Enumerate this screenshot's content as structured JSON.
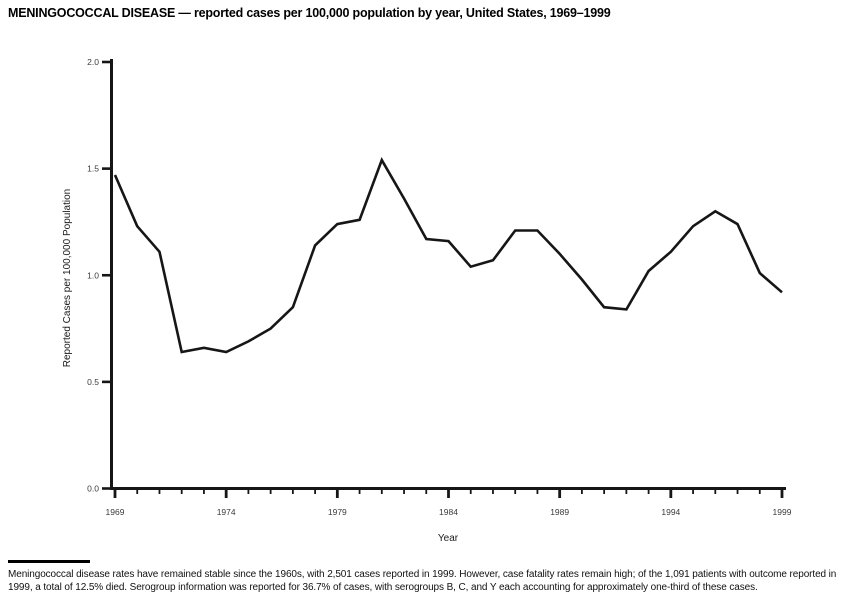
{
  "page": {
    "title": "MENINGOCOCCAL DISEASE — reported cases per 100,000 population by year, United States, 1969–1999"
  },
  "footnote": {
    "text": "Meningococcal disease rates have remained stable since the 1960s, with 2,501 cases reported in 1999. However, case fatality rates remain high; of the 1,091 patients with outcome reported in 1999, a total of 12.5% died. Serogroup information was reported for 36.7% of cases, with serogroups B, C, and Y each accounting for approximately one-third of these cases."
  },
  "chart_data": {
    "type": "line",
    "title": "MENINGOCOCCAL DISEASE — reported cases per 100,000 population by year, United States, 1969–1999",
    "xlabel": "Year",
    "ylabel": "Reported Cases per 100,000 Population",
    "xlim": [
      1969,
      1999
    ],
    "ylim": [
      0.0,
      2.0
    ],
    "y_ticks": [
      0.0,
      0.5,
      1.0,
      1.5,
      2.0
    ],
    "x_major_ticks": [
      1969,
      1974,
      1979,
      1984,
      1989,
      1994,
      1999
    ],
    "x_minor_tick_interval": 1,
    "grid": false,
    "legend": "none",
    "line_color": "#161616",
    "x": [
      1969,
      1970,
      1971,
      1972,
      1973,
      1974,
      1975,
      1976,
      1977,
      1978,
      1979,
      1980,
      1981,
      1982,
      1983,
      1984,
      1985,
      1986,
      1987,
      1988,
      1989,
      1990,
      1991,
      1992,
      1993,
      1994,
      1995,
      1996,
      1997,
      1998,
      1999
    ],
    "values": [
      1.47,
      1.23,
      1.11,
      0.64,
      0.66,
      0.64,
      0.69,
      0.75,
      0.85,
      1.14,
      1.24,
      1.26,
      1.54,
      1.36,
      1.17,
      1.16,
      1.04,
      1.07,
      1.21,
      1.21,
      1.1,
      0.98,
      0.85,
      0.84,
      1.02,
      1.11,
      1.23,
      1.3,
      1.24,
      1.01,
      0.92
    ]
  }
}
